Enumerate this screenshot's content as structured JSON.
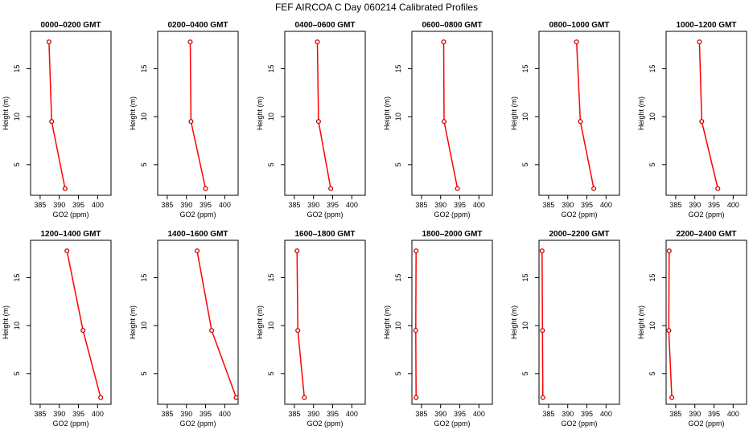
{
  "figure": {
    "title": "FEF AIRCOA C  Day 060214  Calibrated Profiles",
    "line_color": "#ff0000",
    "marker_color": "#cc0000"
  },
  "chart_data": [
    {
      "type": "line",
      "title": "0000–0200 GMT",
      "xlabel": "GO2 (ppm)",
      "ylabel": "Height (m)",
      "xlim": [
        382.5,
        403.5
      ],
      "ylim": [
        1.8,
        18.9
      ],
      "xticks": [
        385,
        390,
        395,
        400
      ],
      "yticks": [
        5,
        10,
        15
      ],
      "x": [
        387.3,
        388.0,
        391.5
      ],
      "y": [
        17.8,
        9.5,
        2.5
      ]
    },
    {
      "type": "line",
      "title": "0200–0400 GMT",
      "xlabel": "GO2 (ppm)",
      "ylabel": "Height (m)",
      "xlim": [
        382.5,
        403.5
      ],
      "ylim": [
        1.8,
        18.9
      ],
      "xticks": [
        385,
        390,
        395,
        400
      ],
      "yticks": [
        5,
        10,
        15
      ],
      "x": [
        391.0,
        391.2,
        395.0
      ],
      "y": [
        17.8,
        9.5,
        2.5
      ]
    },
    {
      "type": "line",
      "title": "0400–0600 GMT",
      "xlabel": "GO2 (ppm)",
      "ylabel": "Height (m)",
      "xlim": [
        382.5,
        403.5
      ],
      "ylim": [
        1.8,
        18.9
      ],
      "xticks": [
        385,
        390,
        395,
        400
      ],
      "yticks": [
        5,
        10,
        15
      ],
      "x": [
        391.0,
        391.3,
        394.5
      ],
      "y": [
        17.8,
        9.5,
        2.5
      ]
    },
    {
      "type": "line",
      "title": "0600–0800 GMT",
      "xlabel": "GO2 (ppm)",
      "ylabel": "Height (m)",
      "xlim": [
        382.5,
        403.5
      ],
      "ylim": [
        1.8,
        18.9
      ],
      "xticks": [
        385,
        390,
        395,
        400
      ],
      "yticks": [
        5,
        10,
        15
      ],
      "x": [
        390.8,
        390.9,
        394.4
      ],
      "y": [
        17.8,
        9.5,
        2.5
      ]
    },
    {
      "type": "line",
      "title": "0800–1000 GMT",
      "xlabel": "GO2 (ppm)",
      "ylabel": "Height (m)",
      "xlim": [
        382.5,
        403.5
      ],
      "ylim": [
        1.8,
        18.9
      ],
      "xticks": [
        385,
        390,
        395,
        400
      ],
      "yticks": [
        5,
        10,
        15
      ],
      "x": [
        392.3,
        393.3,
        396.8
      ],
      "y": [
        17.8,
        9.5,
        2.5
      ]
    },
    {
      "type": "line",
      "title": "1000–1200 GMT",
      "xlabel": "GO2 (ppm)",
      "ylabel": "Height (m)",
      "xlim": [
        382.5,
        403.5
      ],
      "ylim": [
        1.8,
        18.9
      ],
      "xticks": [
        385,
        390,
        395,
        400
      ],
      "yticks": [
        5,
        10,
        15
      ],
      "x": [
        391.2,
        391.8,
        396.0
      ],
      "y": [
        17.8,
        9.5,
        2.5
      ]
    },
    {
      "type": "line",
      "title": "1200–1400 GMT",
      "xlabel": "GO2 (ppm)",
      "ylabel": "Height (m)",
      "xlim": [
        382.5,
        403.5
      ],
      "ylim": [
        1.8,
        18.9
      ],
      "xticks": [
        385,
        390,
        395,
        400
      ],
      "yticks": [
        5,
        10,
        15
      ],
      "x": [
        392.0,
        396.2,
        400.8
      ],
      "y": [
        17.8,
        9.5,
        2.5
      ]
    },
    {
      "type": "line",
      "title": "1400–1600 GMT",
      "xlabel": "GO2 (ppm)",
      "ylabel": "Height (m)",
      "xlim": [
        382.5,
        403.5
      ],
      "ylim": [
        1.8,
        18.9
      ],
      "xticks": [
        385,
        390,
        395,
        400
      ],
      "yticks": [
        5,
        10,
        15
      ],
      "x": [
        392.8,
        396.6,
        403.0
      ],
      "y": [
        17.8,
        9.5,
        2.5
      ]
    },
    {
      "type": "line",
      "title": "1600–1800 GMT",
      "xlabel": "GO2 (ppm)",
      "ylabel": "Height (m)",
      "xlim": [
        382.5,
        403.5
      ],
      "ylim": [
        1.8,
        18.9
      ],
      "xticks": [
        385,
        390,
        395,
        400
      ],
      "yticks": [
        5,
        10,
        15
      ],
      "x": [
        385.7,
        385.9,
        387.6
      ],
      "y": [
        17.8,
        9.5,
        2.5
      ]
    },
    {
      "type": "line",
      "title": "1800–2000 GMT",
      "xlabel": "GO2 (ppm)",
      "ylabel": "Height (m)",
      "xlim": [
        382.5,
        403.5
      ],
      "ylim": [
        1.8,
        18.9
      ],
      "xticks": [
        385,
        390,
        395,
        400
      ],
      "yticks": [
        5,
        10,
        15
      ],
      "x": [
        383.6,
        383.5,
        383.6
      ],
      "y": [
        17.8,
        9.5,
        2.5
      ]
    },
    {
      "type": "line",
      "title": "2000–2200 GMT",
      "xlabel": "GO2 (ppm)",
      "ylabel": "Height (m)",
      "xlim": [
        382.5,
        403.5
      ],
      "ylim": [
        1.8,
        18.9
      ],
      "xticks": [
        385,
        390,
        395,
        400
      ],
      "yticks": [
        5,
        10,
        15
      ],
      "x": [
        383.3,
        383.4,
        383.5
      ],
      "y": [
        17.8,
        9.5,
        2.5
      ]
    },
    {
      "type": "line",
      "title": "2200–2400 GMT",
      "xlabel": "GO2 (ppm)",
      "ylabel": "Height (m)",
      "xlim": [
        382.5,
        403.5
      ],
      "ylim": [
        1.8,
        18.9
      ],
      "xticks": [
        385,
        390,
        395,
        400
      ],
      "yticks": [
        5,
        10,
        15
      ],
      "x": [
        383.3,
        383.2,
        384.0
      ],
      "y": [
        17.8,
        9.5,
        2.5
      ]
    }
  ]
}
